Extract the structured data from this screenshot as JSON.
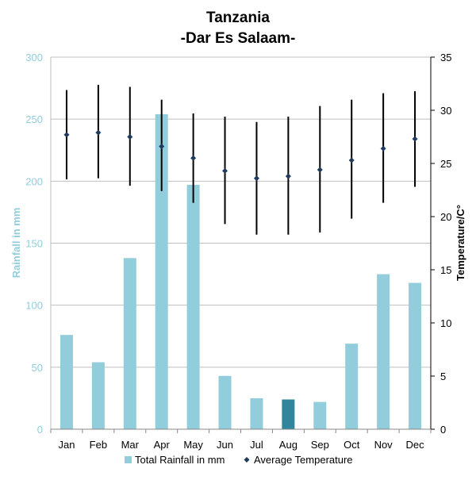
{
  "chart_data": {
    "type": "bar",
    "title": "Tanzania",
    "subtitle": "-Dar Es Salaam-",
    "categories": [
      "Jan",
      "Feb",
      "Mar",
      "Apr",
      "May",
      "Jun",
      "Jul",
      "Aug",
      "Sep",
      "Oct",
      "Nov",
      "Dec"
    ],
    "ylabel": "Rainfall in mm",
    "ylabel_right": "Temperature/C°",
    "ylim": [
      0,
      300
    ],
    "ylim_right": [
      0,
      35
    ],
    "yticks": [
      "0",
      "50",
      "100",
      "150",
      "200",
      "250",
      "300"
    ],
    "yticks_right": [
      "0",
      "5",
      "10",
      "15",
      "20",
      "25",
      "30",
      "35"
    ],
    "grid": true,
    "legend_position": "bottom",
    "series": [
      {
        "name": "Total Rainfall in mm",
        "kind": "bar",
        "axis": "left",
        "color": "#92CDDC",
        "highlight_color": "#31859C",
        "highlight_index": 7,
        "values": [
          76,
          54,
          138,
          254,
          197,
          43,
          25,
          24,
          22,
          69,
          125,
          118
        ]
      },
      {
        "name": "Average Temperature",
        "kind": "scatter-errorbar",
        "axis": "right",
        "color": "#1F3A5F",
        "values": [
          27.7,
          27.9,
          27.5,
          26.6,
          25.5,
          24.3,
          23.6,
          23.8,
          24.4,
          25.3,
          26.4,
          27.3
        ],
        "high": [
          31.9,
          32.4,
          32.2,
          31.0,
          29.7,
          29.4,
          28.9,
          29.4,
          30.4,
          31.0,
          31.6,
          31.8
        ],
        "low": [
          23.5,
          23.6,
          22.9,
          22.4,
          21.3,
          19.3,
          18.3,
          18.3,
          18.5,
          19.8,
          21.3,
          22.8
        ]
      }
    ]
  }
}
